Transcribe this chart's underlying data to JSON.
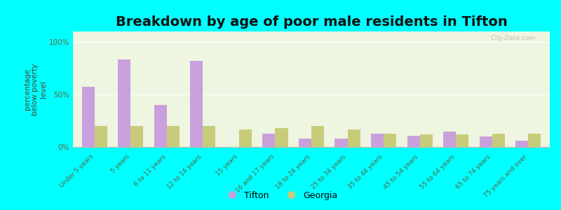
{
  "title": "Breakdown by age of poor male residents in Tifton",
  "ylabel": "percentage\nbelow poverty\nlevel",
  "categories": [
    "Under 5 years",
    "5 years",
    "6 to 11 years",
    "12 to 14 years",
    "15 years",
    "16 and 17 years",
    "18 to 24 years",
    "25 to 34 years",
    "35 to 44 years",
    "45 to 54 years",
    "55 to 64 years",
    "65 to 74 years",
    "75 years and over"
  ],
  "tifton_values": [
    57,
    83,
    40,
    82,
    0,
    13,
    8,
    8,
    13,
    11,
    15,
    10,
    6
  ],
  "georgia_values": [
    20,
    20,
    20,
    20,
    17,
    18,
    20,
    17,
    13,
    12,
    12,
    13,
    13
  ],
  "tifton_color": "#c9a0dc",
  "georgia_color": "#c8cc7a",
  "background_color": "#00ffff",
  "plot_bg_color": "#eef5e0",
  "ylim": [
    0,
    110
  ],
  "yticks": [
    0,
    50,
    100
  ],
  "ytick_labels": [
    "0%",
    "50%",
    "100%"
  ],
  "title_fontsize": 14,
  "axis_label_fontsize": 7.5,
  "tick_label_fontsize": 6.5,
  "legend_fontsize": 9,
  "bar_width": 0.35,
  "watermark": "City-Data.com"
}
